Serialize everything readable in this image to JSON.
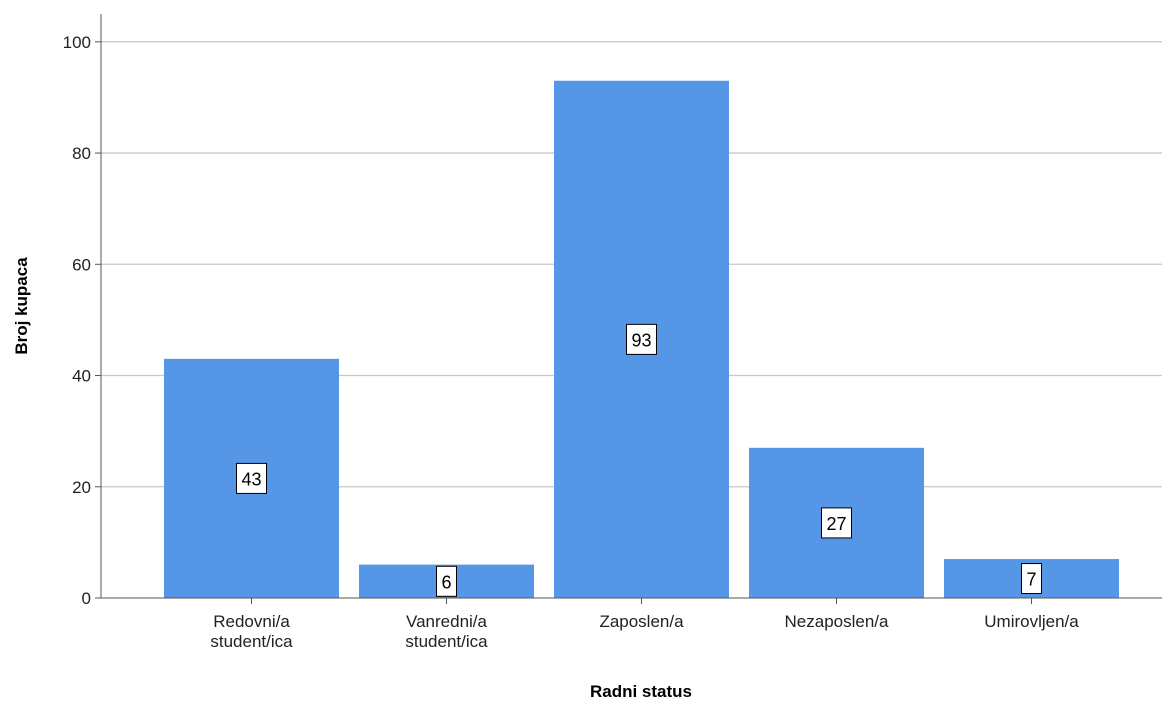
{
  "chart_data": {
    "type": "bar",
    "categories": [
      "Redovni/a student/ica",
      "Vanredni/a student/ica",
      "Zaposlen/a",
      "Nezaposlen/a",
      "Umirovljen/a"
    ],
    "category_lines": [
      [
        "Redovni/a",
        "student/ica"
      ],
      [
        "Vanredni/a",
        "student/ica"
      ],
      [
        "Zaposlen/a"
      ],
      [
        "Nezaposlen/a"
      ],
      [
        "Umirovljen/a"
      ]
    ],
    "values": [
      43,
      6,
      93,
      27,
      7
    ],
    "xlabel": "Radni status",
    "ylabel": "Broj kupaca",
    "ylim": [
      0,
      105
    ],
    "yticks": [
      0,
      20,
      40,
      60,
      80,
      100
    ],
    "grid": true,
    "data_labels": true,
    "bar_color": "#5596e6"
  }
}
